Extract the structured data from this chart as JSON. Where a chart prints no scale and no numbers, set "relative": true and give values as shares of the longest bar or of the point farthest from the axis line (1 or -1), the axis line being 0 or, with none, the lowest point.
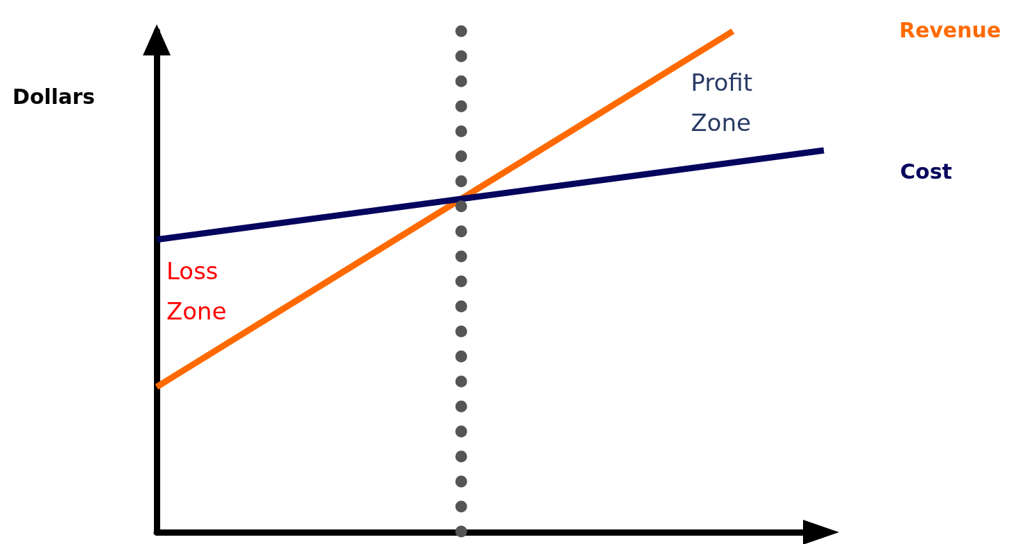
{
  "chart_data": {
    "type": "line",
    "relative": true,
    "ylabel": "Dollars",
    "categories": [
      null,
      null,
      null,
      null,
      null,
      null,
      null,
      null,
      null,
      null,
      null,
      null,
      null,
      null,
      null,
      null,
      null,
      null,
      null,
      null,
      null,
      null,
      null
    ],
    "grid": false,
    "legend": false,
    "marker": "none",
    "line_style": "solid",
    "series": [
      {
        "name": "Revenue",
        "color": "#ff6a00",
        "values": [
          0.29,
          null,
          null,
          null,
          null,
          null,
          null,
          null,
          null,
          null,
          null,
          null,
          null,
          null,
          null,
          null,
          null,
          null,
          null,
          1,
          null,
          null,
          null
        ]
      },
      {
        "name": "Cost",
        "color": "#05055e",
        "values": [
          0.584,
          null,
          null,
          null,
          null,
          null,
          null,
          null,
          null,
          null,
          null,
          null,
          null,
          null,
          null,
          null,
          null,
          null,
          null,
          null,
          null,
          null,
          0.762
        ]
      }
    ],
    "annotations": [
      "Loss Zone",
      "Profit Zone"
    ]
  }
}
